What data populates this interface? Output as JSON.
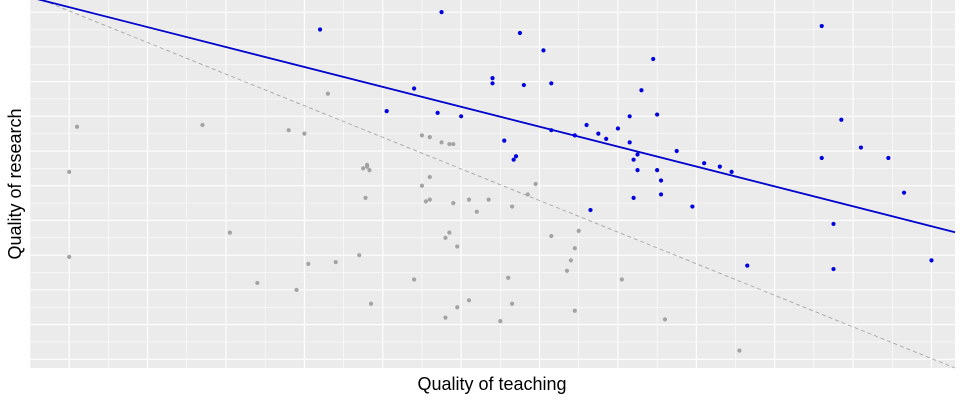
{
  "chart_data": {
    "type": "scatter",
    "title": "",
    "xlabel": "Quality of teaching",
    "ylabel": "Quality of research",
    "xlim": [
      -0.5,
      11.3
    ],
    "ylim": [
      -0.25,
      10.35
    ],
    "grid": true,
    "ticks_shown": false,
    "legend": "none",
    "colors": {
      "panel": "#ebebeb",
      "grid": "#ffffff",
      "selected": "#0000e0",
      "rejected": "#a3a3a3",
      "fit_line": "#0000cc",
      "diagonal": "#a6a6a6"
    },
    "series": [
      {
        "group": "selected",
        "points": [
          [
            3.2,
            9.5
          ],
          [
            4.75,
            10.0
          ],
          [
            5.75,
            9.4
          ],
          [
            6.05,
            8.9
          ],
          [
            5.4,
            8.1
          ],
          [
            5.4,
            7.95
          ],
          [
            5.8,
            7.9
          ],
          [
            6.15,
            7.95
          ],
          [
            7.45,
            8.65
          ],
          [
            7.3,
            7.75
          ],
          [
            4.4,
            7.8
          ],
          [
            4.7,
            7.1
          ],
          [
            5.0,
            7.0
          ],
          [
            4.05,
            7.15
          ],
          [
            6.15,
            6.6
          ],
          [
            5.55,
            6.3
          ],
          [
            5.7,
            5.85
          ],
          [
            5.67,
            5.75
          ],
          [
            6.45,
            6.45
          ],
          [
            6.6,
            6.75
          ],
          [
            6.75,
            6.5
          ],
          [
            7.0,
            6.65
          ],
          [
            7.15,
            7.0
          ],
          [
            6.85,
            6.35
          ],
          [
            7.15,
            6.25
          ],
          [
            7.25,
            5.9
          ],
          [
            7.2,
            5.75
          ],
          [
            7.25,
            5.45
          ],
          [
            7.5,
            5.45
          ],
          [
            7.55,
            5.15
          ],
          [
            7.55,
            4.75
          ],
          [
            7.2,
            4.65
          ],
          [
            6.65,
            4.3
          ],
          [
            7.5,
            7.05
          ],
          [
            7.75,
            6.0
          ],
          [
            8.1,
            5.65
          ],
          [
            8.3,
            5.55
          ],
          [
            8.45,
            5.4
          ],
          [
            7.95,
            4.4
          ],
          [
            9.6,
            9.6
          ],
          [
            9.85,
            6.9
          ],
          [
            9.6,
            5.8
          ],
          [
            9.75,
            3.9
          ],
          [
            9.75,
            2.6
          ],
          [
            10.1,
            6.1
          ],
          [
            10.45,
            5.8
          ],
          [
            10.65,
            4.8
          ],
          [
            8.65,
            2.7
          ],
          [
            11.0,
            2.85
          ]
        ]
      },
      {
        "group": "rejected",
        "points": [
          [
            1.7,
            6.75
          ],
          [
            0.1,
            6.7
          ],
          [
            0.0,
            5.4
          ],
          [
            0.0,
            2.95
          ],
          [
            2.05,
            3.65
          ],
          [
            2.4,
            2.2
          ],
          [
            2.9,
            2.0
          ],
          [
            3.05,
            2.75
          ],
          [
            2.8,
            6.6
          ],
          [
            3.0,
            6.5
          ],
          [
            3.3,
            7.65
          ],
          [
            3.4,
            2.8
          ],
          [
            3.8,
            5.55
          ],
          [
            3.8,
            5.6
          ],
          [
            3.75,
            5.5
          ],
          [
            3.83,
            5.45
          ],
          [
            3.78,
            4.65
          ],
          [
            3.7,
            3.0
          ],
          [
            3.85,
            1.6
          ],
          [
            4.5,
            6.45
          ],
          [
            4.6,
            5.25
          ],
          [
            4.5,
            5.0
          ],
          [
            4.6,
            6.4
          ],
          [
            4.85,
            6.2
          ],
          [
            4.75,
            6.25
          ],
          [
            4.9,
            6.2
          ],
          [
            4.4,
            2.3
          ],
          [
            4.55,
            4.55
          ],
          [
            4.6,
            4.6
          ],
          [
            4.9,
            4.5
          ],
          [
            4.8,
            3.5
          ],
          [
            4.85,
            3.65
          ],
          [
            4.95,
            3.25
          ],
          [
            5.1,
            4.6
          ],
          [
            5.35,
            4.6
          ],
          [
            5.2,
            4.25
          ],
          [
            5.65,
            4.4
          ],
          [
            5.85,
            4.75
          ],
          [
            5.6,
            2.35
          ],
          [
            5.65,
            1.6
          ],
          [
            5.5,
            1.1
          ],
          [
            4.8,
            1.2
          ],
          [
            4.95,
            1.5
          ],
          [
            5.1,
            1.7
          ],
          [
            5.95,
            5.05
          ],
          [
            6.15,
            3.55
          ],
          [
            6.5,
            3.7
          ],
          [
            6.45,
            3.2
          ],
          [
            6.4,
            2.85
          ],
          [
            6.35,
            2.55
          ],
          [
            6.45,
            1.4
          ],
          [
            7.05,
            2.3
          ],
          [
            7.6,
            1.15
          ],
          [
            8.55,
            0.25
          ]
        ]
      }
    ],
    "fit_line": {
      "x": [
        -0.5,
        11.3
      ],
      "y": [
        10.43,
        3.66
      ]
    },
    "diagonal_line": {
      "x": [
        -0.5,
        11.3
      ],
      "y": [
        10.49,
        -0.25
      ]
    }
  }
}
